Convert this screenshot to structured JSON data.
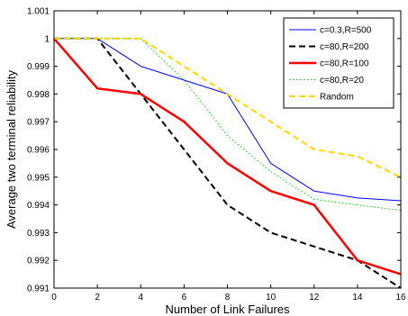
{
  "chart_data": {
    "type": "line",
    "xlabel": "Number of Link Failures",
    "ylabel": "Average two terminal reliability",
    "xlim": [
      0,
      16
    ],
    "ylim": [
      0.991,
      1.001
    ],
    "x_ticks": [
      0,
      2,
      4,
      6,
      8,
      10,
      12,
      14,
      16
    ],
    "y_ticks": [
      0.991,
      0.992,
      0.993,
      0.994,
      0.995,
      0.996,
      0.997,
      0.998,
      0.999,
      1,
      1.001
    ],
    "x_tick_labels": [
      "0",
      "2",
      "4",
      "6",
      "8",
      "10",
      "12",
      "14",
      "16"
    ],
    "y_tick_labels": [
      "0.991",
      "0.992",
      "0.993",
      "0.994",
      "0.995",
      "0.996",
      "0.997",
      "0.998",
      "0.999",
      "1",
      "1.001"
    ],
    "legend_position": "top-right",
    "grid": false,
    "x": [
      0,
      2,
      4,
      6,
      8,
      10,
      12,
      14,
      16
    ],
    "series": [
      {
        "name": "c=0.3,R=500",
        "color": "#0000ff",
        "style": "solid",
        "width": 1,
        "values": [
          1.0,
          1.0,
          0.999,
          0.9985,
          0.998,
          0.9955,
          0.9945,
          0.99425,
          0.99415
        ]
      },
      {
        "name": "c=80,R=200",
        "color": "#000000",
        "style": "dashed",
        "width": 2,
        "values": [
          1.0,
          1.0,
          0.998,
          0.996,
          0.994,
          0.993,
          0.9925,
          0.992,
          0.991
        ]
      },
      {
        "name": "c=80,R=100",
        "color": "#ff0000",
        "style": "solid",
        "width": 2.5,
        "values": [
          1.0,
          0.9982,
          0.998,
          0.997,
          0.9955,
          0.9945,
          0.994,
          0.992,
          0.9915
        ]
      },
      {
        "name": "c=80,R=20",
        "color": "#00cc00",
        "style": "dotted",
        "width": 1,
        "values": [
          1.0,
          1.0,
          1.0,
          0.9985,
          0.9965,
          0.9952,
          0.9942,
          0.994,
          0.9938
        ]
      },
      {
        "name": "Random",
        "color": "#ffd700",
        "style": "dashed",
        "width": 2,
        "values": [
          1.0,
          1.0,
          1.0,
          0.999,
          0.998,
          0.997,
          0.996,
          0.99575,
          0.995
        ]
      }
    ]
  }
}
